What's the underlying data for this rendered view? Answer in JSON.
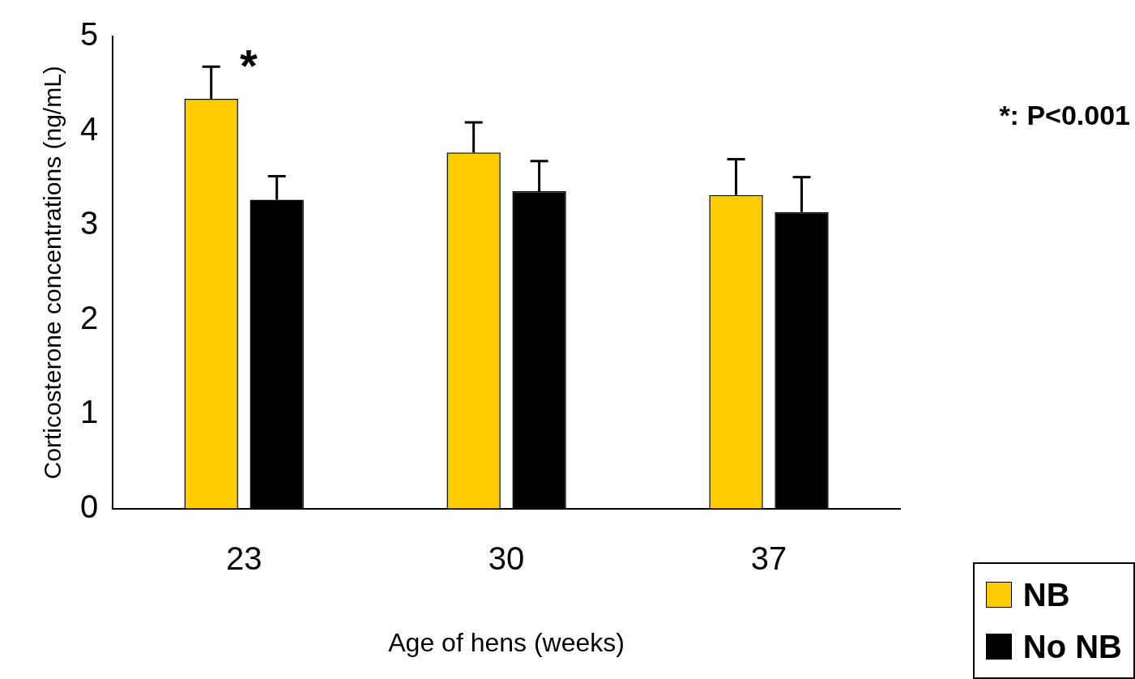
{
  "chart_data": {
    "type": "bar",
    "xlabel": "Age of hens (weeks)",
    "ylabel": "Corticosterone concentrations (ng/mL)",
    "categories": [
      "23",
      "30",
      "37"
    ],
    "series": [
      {
        "name": "NB",
        "color": "#ffcc00",
        "values": [
          4.34,
          3.77,
          3.32
        ],
        "errors": [
          [
            4.34,
            4.68
          ],
          [
            3.77,
            4.09
          ],
          [
            3.32,
            3.7
          ]
        ]
      },
      {
        "name": "No NB",
        "color": "#000000",
        "values": [
          3.27,
          3.36,
          3.14
        ],
        "errors": [
          [
            3.27,
            3.52
          ],
          [
            3.36,
            3.68
          ],
          [
            3.14,
            3.51
          ]
        ]
      }
    ],
    "ylim": [
      0,
      5
    ],
    "yticks": [
      0,
      1,
      2,
      3,
      4,
      5
    ],
    "grid": false,
    "legend": "bottom right",
    "annotations": [
      "*",
      "*: P<0.001"
    ]
  }
}
